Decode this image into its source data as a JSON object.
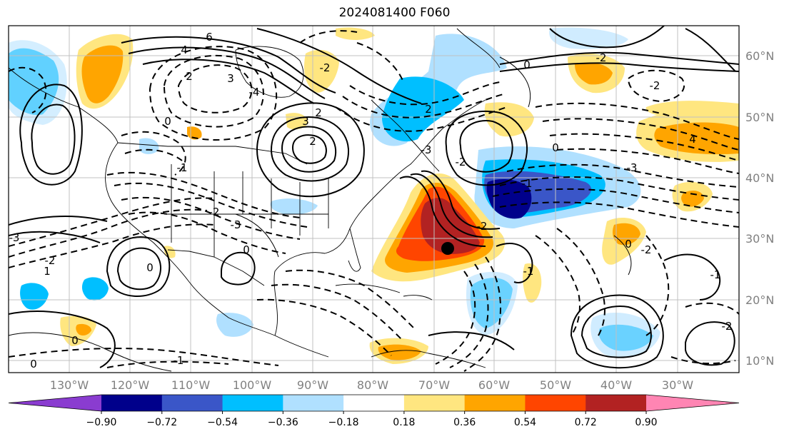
{
  "title": "2024081400 F060",
  "longitude_labels": [
    "130°W",
    "120°W",
    "110°W",
    "100°W",
    "90°W",
    "80°W",
    "70°W",
    "60°W",
    "50°W",
    "40°W",
    "30°W"
  ],
  "latitude_labels": [
    "60°N",
    "50°N",
    "40°N",
    "30°N",
    "20°N",
    "10°N"
  ],
  "colorbar": {
    "ticks": [
      "−0.90",
      "−0.72",
      "−0.54",
      "−0.36",
      "−0.18",
      "0.18",
      "0.36",
      "0.54",
      "0.72",
      "0.90"
    ],
    "colors": [
      "#8a3cd0",
      "#00008b",
      "#3a56c8",
      "#00bfff",
      "#b0e0ff",
      "#ffffff",
      "#ffe680",
      "#ffa500",
      "#ff4500",
      "#b22222",
      "#ff85b3"
    ]
  },
  "contour_labels": [
    "6",
    "4",
    "3",
    "2",
    "0",
    "-1",
    "-2",
    "-3",
    "-4",
    "2",
    "1",
    "0",
    "-1",
    "-2",
    "-3",
    "2",
    "0",
    "-2",
    "-3",
    "0",
    "-1",
    "-2",
    "4",
    "3",
    "2",
    "-2",
    "-3",
    "-2",
    "-2",
    "-1",
    "0",
    "0",
    "0",
    "0",
    "-2",
    "-1",
    "-2"
  ],
  "marker": "storm-center-dot",
  "grid": true
}
